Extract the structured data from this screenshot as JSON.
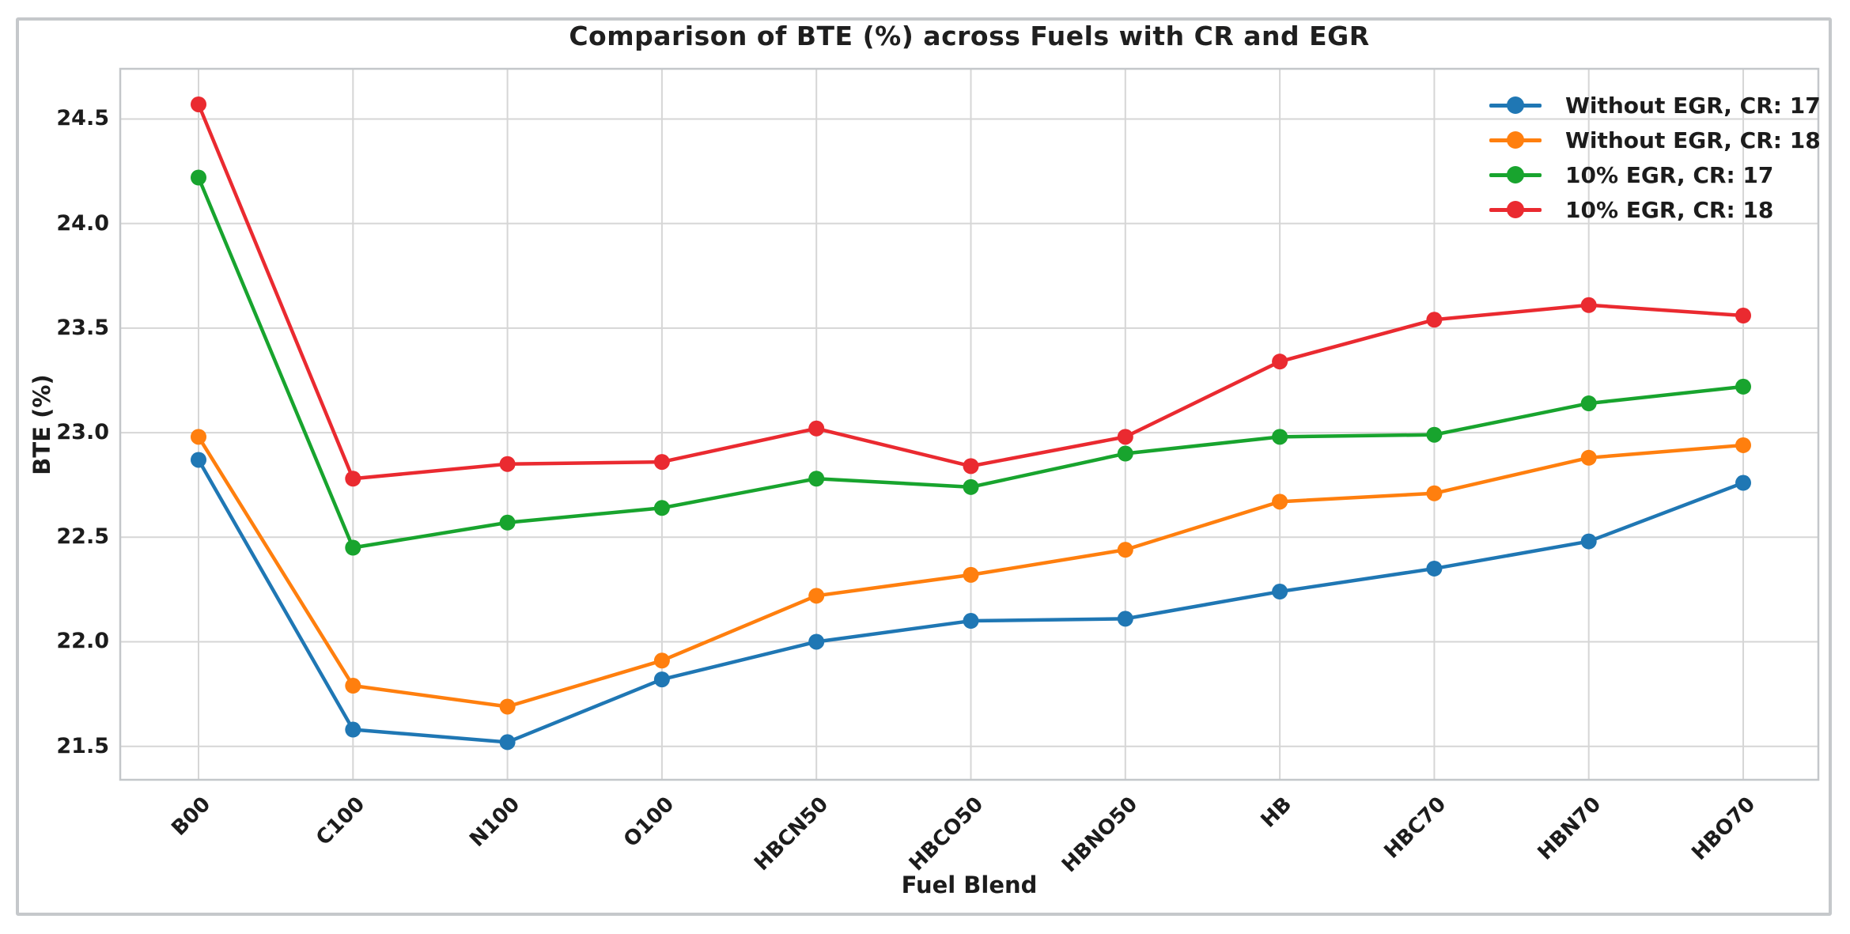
{
  "chart_data": {
    "type": "line",
    "title": "Comparison of BTE (%) across Fuels with CR and EGR",
    "xlabel": "Fuel Blend",
    "ylabel": "BTE (%)",
    "categories": [
      "B00",
      "C100",
      "N100",
      "O100",
      "HBCN50",
      "HBCO50",
      "HBNO50",
      "HB",
      "HBC70",
      "HBN70",
      "HBO70"
    ],
    "y_ticks": [
      21.5,
      22.0,
      22.5,
      23.0,
      23.5,
      24.0,
      24.5
    ],
    "y_tick_labels": [
      "21.5",
      "22.0",
      "22.5",
      "23.0",
      "23.5",
      "24.0",
      "24.5"
    ],
    "ylim": [
      21.34,
      24.74
    ],
    "grid": true,
    "legend_position": "upper right",
    "legend_frame": false,
    "series": [
      {
        "name": "Without EGR, CR: 17",
        "color": "#1f77b4",
        "values": [
          22.87,
          21.58,
          21.52,
          21.82,
          22.0,
          22.1,
          22.11,
          22.24,
          22.35,
          22.48,
          22.76
        ]
      },
      {
        "name": "Without EGR, CR: 18",
        "color": "#ff7f0e",
        "values": [
          22.98,
          21.79,
          21.69,
          21.91,
          22.22,
          22.32,
          22.44,
          22.67,
          22.71,
          22.88,
          22.94
        ]
      },
      {
        "name": "10% EGR, CR: 17",
        "color": "#18a42e",
        "values": [
          24.22,
          22.45,
          22.57,
          22.64,
          22.78,
          22.74,
          22.9,
          22.98,
          22.99,
          23.14,
          23.22
        ]
      },
      {
        "name": "10% EGR, CR: 18",
        "color": "#ea2a30",
        "values": [
          24.57,
          22.78,
          22.85,
          22.86,
          23.02,
          22.84,
          22.98,
          23.34,
          23.54,
          23.61,
          23.56
        ]
      }
    ]
  }
}
